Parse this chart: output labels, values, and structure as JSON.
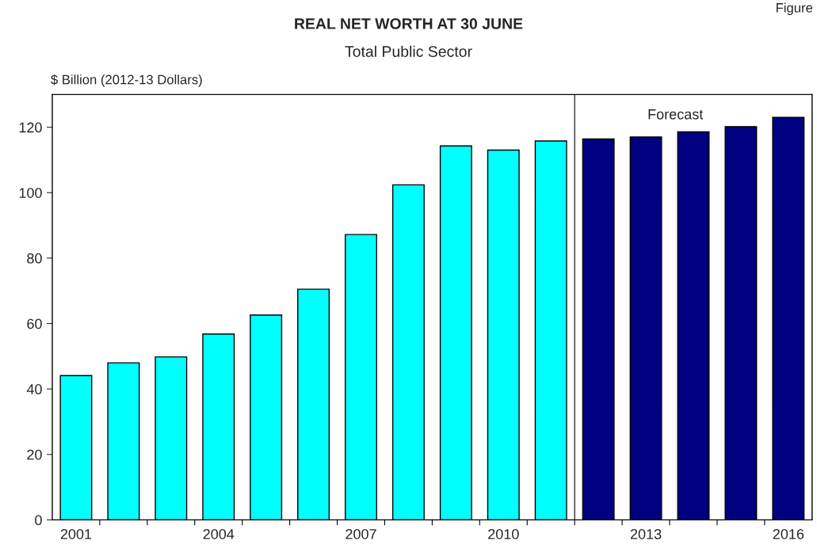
{
  "chart_data": {
    "type": "bar",
    "title": "REAL NET WORTH AT 30 JUNE",
    "subtitle": "Total Public Sector",
    "ylabel": "$ Billion (2012-13 Dollars)",
    "categories": [
      "2001",
      null,
      null,
      "2004",
      null,
      null,
      "2007",
      null,
      null,
      "2010",
      null,
      null,
      "2013",
      null,
      null,
      "2016"
    ],
    "values": [
      44.1,
      48.0,
      49.8,
      56.8,
      62.6,
      70.5,
      87.2,
      102.4,
      114.3,
      113.0,
      115.8,
      116.4,
      117.0,
      118.6,
      120.2,
      123.0
    ],
    "colors": [
      "#00ffff",
      "#00ffff",
      "#00ffff",
      "#00ffff",
      "#00ffff",
      "#00ffff",
      "#00ffff",
      "#00ffff",
      "#00ffff",
      "#00ffff",
      "#00ffff",
      "#000080",
      "#000080",
      "#000080",
      "#000080",
      "#000080"
    ],
    "ylim": [
      0,
      130
    ],
    "yticks": [
      0,
      20,
      40,
      60,
      80,
      100,
      120
    ],
    "annotations": [
      "Forecast",
      "Figure"
    ],
    "grid": false,
    "legend": false
  }
}
